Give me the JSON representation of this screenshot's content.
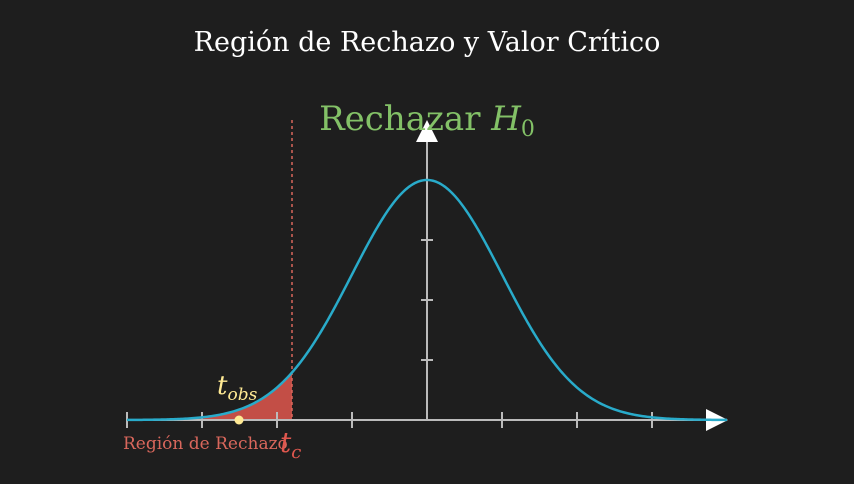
{
  "title": "Región de Rechazo y Valor Crítico",
  "decision_label": {
    "main": "Rechazar ",
    "symbol": "H",
    "subscript": "0"
  },
  "critical_label": {
    "symbol": "t",
    "subscript": "c"
  },
  "observed_label": {
    "symbol": "t",
    "subscript": "obs"
  },
  "region_label": "Región de Rechazo",
  "colors": {
    "background": "#1e1e1e",
    "title": "#ffffff",
    "axes": "#bbbbbb",
    "curve": "#29abca",
    "region": "#e0574e",
    "decision": "#83c167",
    "observed": "#ffea94",
    "dashed": "#d9675c"
  }
}
